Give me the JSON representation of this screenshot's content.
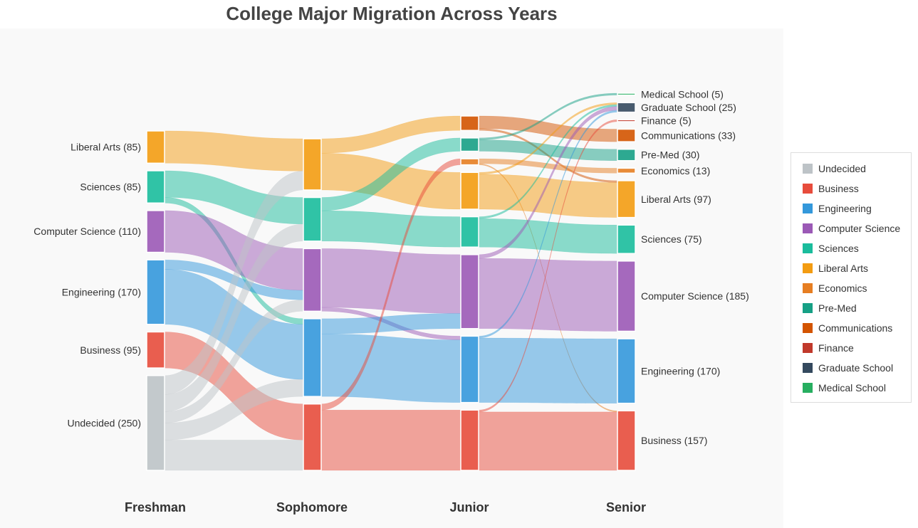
{
  "chart_data": {
    "type": "sankey",
    "title": "College Major Migration Across Years",
    "columns": [
      {
        "label": "Freshman",
        "nodes": [
          {
            "name": "Liberal Arts",
            "value": 85,
            "label": "Liberal Arts (85)"
          },
          {
            "name": "Sciences",
            "value": 85,
            "label": "Sciences (85)"
          },
          {
            "name": "Computer Science",
            "value": 110,
            "label": "Computer Science (110)"
          },
          {
            "name": "Engineering",
            "value": 170,
            "label": "Engineering (170)"
          },
          {
            "name": "Business",
            "value": 95,
            "label": "Business (95)"
          },
          {
            "name": "Undecided",
            "value": 250,
            "label": "Undecided (250)"
          }
        ]
      },
      {
        "label": "Sophomore",
        "nodes": [
          {
            "name": "Liberal Arts",
            "value": 135
          },
          {
            "name": "Sciences",
            "value": 115
          },
          {
            "name": "Computer Science",
            "value": 165
          },
          {
            "name": "Engineering",
            "value": 205
          },
          {
            "name": "Business",
            "value": 175
          }
        ]
      },
      {
        "label": "Junior",
        "nodes": [
          {
            "name": "Communications",
            "value": 38
          },
          {
            "name": "Pre-Med",
            "value": 35
          },
          {
            "name": "Economics",
            "value": 16
          },
          {
            "name": "Liberal Arts",
            "value": 97
          },
          {
            "name": "Sciences",
            "value": 80
          },
          {
            "name": "Computer Science",
            "value": 195
          },
          {
            "name": "Engineering",
            "value": 175
          },
          {
            "name": "Business",
            "value": 159
          }
        ]
      },
      {
        "label": "Senior",
        "nodes": [
          {
            "name": "Medical School",
            "value": 5,
            "label": "Medical School (5)"
          },
          {
            "name": "Graduate School",
            "value": 25,
            "label": "Graduate School (25)"
          },
          {
            "name": "Finance",
            "value": 5,
            "label": "Finance (5)"
          },
          {
            "name": "Communications",
            "value": 33,
            "label": "Communications (33)"
          },
          {
            "name": "Pre-Med",
            "value": 30,
            "label": "Pre-Med (30)"
          },
          {
            "name": "Economics",
            "value": 13,
            "label": "Economics (13)"
          },
          {
            "name": "Liberal Arts",
            "value": 97,
            "label": "Liberal Arts (97)"
          },
          {
            "name": "Sciences",
            "value": 75,
            "label": "Sciences (75)"
          },
          {
            "name": "Computer Science",
            "value": 185,
            "label": "Computer Science (185)"
          },
          {
            "name": "Engineering",
            "value": 170,
            "label": "Engineering (170)"
          },
          {
            "name": "Business",
            "value": 157,
            "label": "Business (157)"
          }
        ]
      }
    ],
    "links": [
      {
        "col": 0,
        "source": "Liberal Arts",
        "target": "Liberal Arts",
        "value": 85
      },
      {
        "col": 0,
        "source": "Sciences",
        "target": "Sciences",
        "value": 70
      },
      {
        "col": 0,
        "source": "Sciences",
        "target": "Engineering",
        "value": 15
      },
      {
        "col": 0,
        "source": "Computer Science",
        "target": "Computer Science",
        "value": 110
      },
      {
        "col": 0,
        "source": "Engineering",
        "target": "Computer Science",
        "value": 25
      },
      {
        "col": 0,
        "source": "Engineering",
        "target": "Engineering",
        "value": 145
      },
      {
        "col": 0,
        "source": "Business",
        "target": "Business",
        "value": 95
      },
      {
        "col": 0,
        "source": "Undecided",
        "target": "Liberal Arts",
        "value": 50
      },
      {
        "col": 0,
        "source": "Undecided",
        "target": "Sciences",
        "value": 45
      },
      {
        "col": 0,
        "source": "Undecided",
        "target": "Computer Science",
        "value": 30
      },
      {
        "col": 0,
        "source": "Undecided",
        "target": "Engineering",
        "value": 45
      },
      {
        "col": 0,
        "source": "Undecided",
        "target": "Business",
        "value": 80
      },
      {
        "col": 1,
        "source": "Liberal Arts",
        "target": "Communications",
        "value": 38
      },
      {
        "col": 1,
        "source": "Liberal Arts",
        "target": "Liberal Arts",
        "value": 97
      },
      {
        "col": 1,
        "source": "Sciences",
        "target": "Pre-Med",
        "value": 35
      },
      {
        "col": 1,
        "source": "Sciences",
        "target": "Sciences",
        "value": 80
      },
      {
        "col": 1,
        "source": "Computer Science",
        "target": "Computer Science",
        "value": 155
      },
      {
        "col": 1,
        "source": "Computer Science",
        "target": "Engineering",
        "value": 10
      },
      {
        "col": 1,
        "source": "Engineering",
        "target": "Computer Science",
        "value": 40
      },
      {
        "col": 1,
        "source": "Engineering",
        "target": "Engineering",
        "value": 165
      },
      {
        "col": 1,
        "source": "Business",
        "target": "Economics",
        "value": 16
      },
      {
        "col": 1,
        "source": "Business",
        "target": "Business",
        "value": 159
      },
      {
        "col": 2,
        "source": "Communications",
        "target": "Communications",
        "value": 33
      },
      {
        "col": 2,
        "source": "Communications",
        "target": "Liberal Arts",
        "value": 5
      },
      {
        "col": 2,
        "source": "Pre-Med",
        "target": "Medical School",
        "value": 5
      },
      {
        "col": 2,
        "source": "Pre-Med",
        "target": "Pre-Med",
        "value": 30
      },
      {
        "col": 2,
        "source": "Economics",
        "target": "Economics",
        "value": 13
      },
      {
        "col": 2,
        "source": "Economics",
        "target": "Business",
        "value": 3
      },
      {
        "col": 2,
        "source": "Liberal Arts",
        "target": "Graduate School",
        "value": 5
      },
      {
        "col": 2,
        "source": "Liberal Arts",
        "target": "Liberal Arts",
        "value": 92
      },
      {
        "col": 2,
        "source": "Sciences",
        "target": "Graduate School",
        "value": 5
      },
      {
        "col": 2,
        "source": "Sciences",
        "target": "Sciences",
        "value": 75
      },
      {
        "col": 2,
        "source": "Computer Science",
        "target": "Graduate School",
        "value": 10
      },
      {
        "col": 2,
        "source": "Computer Science",
        "target": "Computer Science",
        "value": 185
      },
      {
        "col": 2,
        "source": "Engineering",
        "target": "Graduate School",
        "value": 5
      },
      {
        "col": 2,
        "source": "Engineering",
        "target": "Engineering",
        "value": 170
      },
      {
        "col": 2,
        "source": "Business",
        "target": "Finance",
        "value": 5
      },
      {
        "col": 2,
        "source": "Business",
        "target": "Business",
        "value": 154
      }
    ],
    "colors": {
      "Undecided": "#bdc3c7",
      "Business": "#e74c3c",
      "Engineering": "#3498db",
      "Computer Science": "#9b59b6",
      "Sciences": "#1abc9c",
      "Liberal Arts": "#f39c12",
      "Economics": "#e67e22",
      "Pre-Med": "#16a085",
      "Communications": "#d35400",
      "Finance": "#c0392b",
      "Graduate School": "#34495e",
      "Medical School": "#27ae60"
    },
    "legend": {
      "position": "right",
      "items": [
        "Undecided",
        "Business",
        "Engineering",
        "Computer Science",
        "Sciences",
        "Liberal Arts",
        "Economics",
        "Pre-Med",
        "Communications",
        "Finance",
        "Graduate School",
        "Medical School"
      ]
    }
  }
}
